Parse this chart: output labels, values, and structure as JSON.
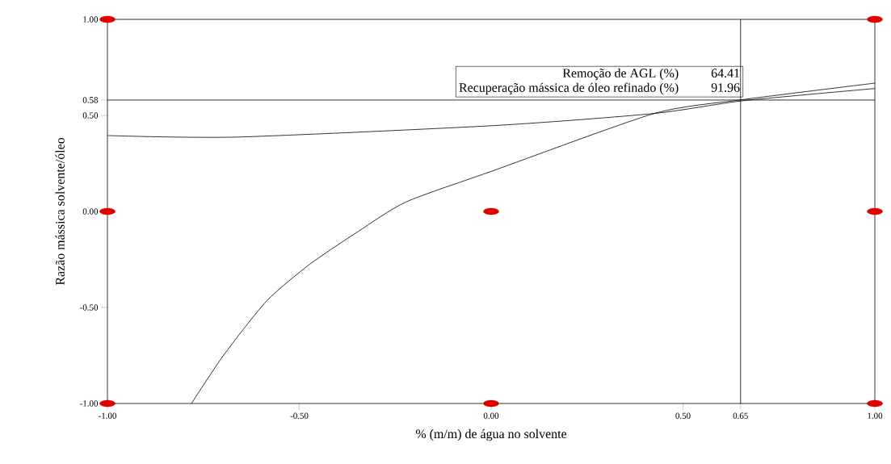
{
  "chart_data": {
    "type": "line",
    "xlabel": "% (m/m) de água no solvente",
    "ylabel": "Razão mássica solvente/óleo",
    "xlim": [
      -1,
      1
    ],
    "ylim": [
      -1,
      1
    ],
    "xticks": [
      {
        "value": -1,
        "label": "-1.00"
      },
      {
        "value": -0.5,
        "label": "-0.50"
      },
      {
        "value": 0,
        "label": "0.00"
      },
      {
        "value": 0.5,
        "label": "0.50"
      },
      {
        "value": 0.65,
        "label": "0.65"
      },
      {
        "value": 1,
        "label": "1.00"
      }
    ],
    "yticks": [
      {
        "value": -1,
        "label": "-1.00"
      },
      {
        "value": -0.5,
        "label": "-0.50"
      },
      {
        "value": 0,
        "label": "0.00"
      },
      {
        "value": 0.5,
        "label": "0.50"
      },
      {
        "value": 0.58,
        "label": "0.58"
      },
      {
        "value": 1,
        "label": "1.00"
      }
    ],
    "series": [
      {
        "color": "#000000",
        "x": [
          -1,
          -0.665,
          0.008,
          0.425,
          0.655,
          1
        ],
        "values": [
          0.395,
          0.387,
          0.447,
          0.51,
          0.576,
          0.64
        ]
      },
      {
        "color": "#000000",
        "x": [
          -0.781,
          -0.697,
          -0.585,
          -0.474,
          -0.347,
          -0.221,
          0.008,
          0.425,
          0.655,
          1
        ],
        "values": [
          -1,
          -0.748,
          -0.466,
          -0.277,
          -0.105,
          0.05,
          0.214,
          0.51,
          0.582,
          0.668
        ]
      },
      {
        "type": "scatter",
        "color": "#dd0000",
        "x": [
          -1,
          1,
          -1,
          0,
          1,
          -1,
          0,
          1
        ],
        "values": [
          1,
          1,
          0,
          0,
          0,
          -1,
          -1,
          -1
        ]
      }
    ],
    "ref_lines": [
      {
        "axis": "x",
        "value": 0.65,
        "color": "#000000"
      },
      {
        "axis": "y",
        "value": 0.58,
        "color": "#000000"
      }
    ],
    "annotations": [
      "Remoção de AGL (%)",
      "64.41",
      "Recuperação mássica de óleo refinado (%)",
      "91.96"
    ],
    "grid": false
  }
}
